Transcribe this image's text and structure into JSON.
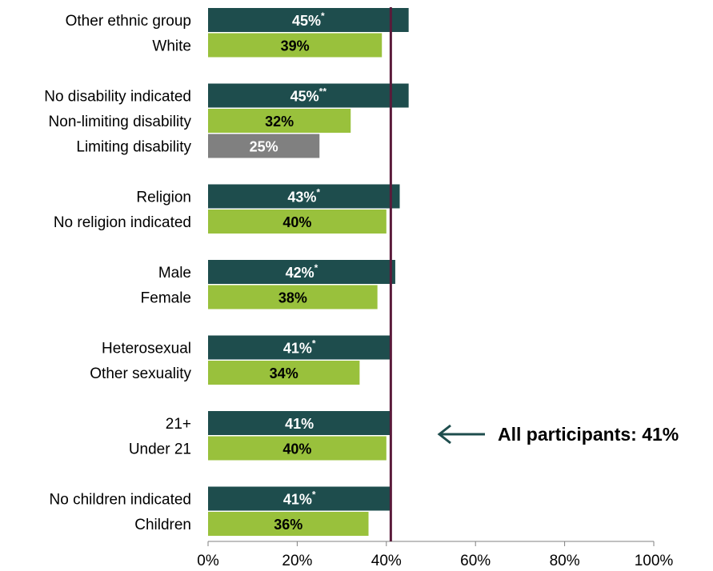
{
  "chart_data": {
    "type": "bar",
    "orientation": "horizontal",
    "xlim": [
      0,
      100
    ],
    "x_ticks": [
      "0%",
      "20%",
      "40%",
      "60%",
      "80%",
      "100%"
    ],
    "reference_line": {
      "value": 41,
      "color": "#5a1a3a"
    },
    "annotation": "All participants: 41%",
    "colors": {
      "dark": "#1e4d4d",
      "green": "#99c13c",
      "grey": "#808080"
    },
    "groups": [
      {
        "bars": [
          {
            "category": "Other ethnic group",
            "value": 45,
            "label": "45%",
            "sig": "*",
            "color": "dark"
          },
          {
            "category": "White",
            "value": 39,
            "label": "39%",
            "sig": "",
            "color": "green"
          }
        ]
      },
      {
        "bars": [
          {
            "category": "No disability indicated",
            "value": 45,
            "label": "45%",
            "sig": "**",
            "color": "dark"
          },
          {
            "category": "Non-limiting disability",
            "value": 32,
            "label": "32%",
            "sig": "",
            "color": "green"
          },
          {
            "category": "Limiting disability",
            "value": 25,
            "label": "25%",
            "sig": "",
            "color": "grey"
          }
        ]
      },
      {
        "bars": [
          {
            "category": "Religion",
            "value": 43,
            "label": "43%",
            "sig": "*",
            "color": "dark"
          },
          {
            "category": "No religion indicated",
            "value": 40,
            "label": "40%",
            "sig": "",
            "color": "green"
          }
        ]
      },
      {
        "bars": [
          {
            "category": "Male",
            "value": 42,
            "label": "42%",
            "sig": "*",
            "color": "dark"
          },
          {
            "category": "Female",
            "value": 38,
            "label": "38%",
            "sig": "",
            "color": "green"
          }
        ]
      },
      {
        "bars": [
          {
            "category": "Heterosexual",
            "value": 41,
            "label": "41%",
            "sig": "*",
            "color": "dark"
          },
          {
            "category": "Other sexuality",
            "value": 34,
            "label": "34%",
            "sig": "",
            "color": "green"
          }
        ]
      },
      {
        "bars": [
          {
            "category": "21+",
            "value": 41,
            "label": "41%",
            "sig": "",
            "color": "dark"
          },
          {
            "category": "Under 21",
            "value": 40,
            "label": "40%",
            "sig": "",
            "color": "green"
          }
        ]
      },
      {
        "bars": [
          {
            "category": "No children indicated",
            "value": 41,
            "label": "41%",
            "sig": "*",
            "color": "dark"
          },
          {
            "category": "Children",
            "value": 36,
            "label": "36%",
            "sig": "",
            "color": "green"
          }
        ]
      }
    ]
  }
}
